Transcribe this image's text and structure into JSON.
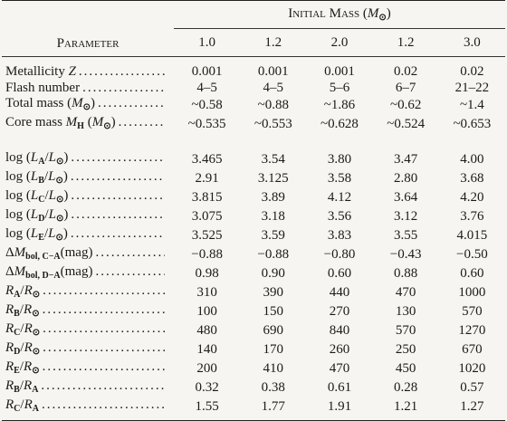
{
  "header": {
    "spanner": [
      "Initial Mass (",
      {
        "text": "M",
        "style": "italic"
      },
      {
        "text": "⊙",
        "style": "sub"
      },
      ")"
    ],
    "parameter": "Parameter",
    "columns": [
      "1.0",
      "1.2",
      "2.0",
      "1.2",
      "3.0"
    ]
  },
  "table": {
    "groups": [
      {
        "rows": [
          {
            "label": [
              "Metallicity ",
              {
                "text": "Z",
                "style": "italic"
              }
            ],
            "values": [
              "0.001",
              "0.001",
              "0.001",
              "0.02",
              "0.02"
            ]
          },
          {
            "label": [
              "Flash number"
            ],
            "values": [
              "4–5",
              "4–5",
              "5–6",
              "6–7",
              "21–22"
            ]
          },
          {
            "label": [
              "Total mass (",
              {
                "text": "M",
                "style": "italic"
              },
              {
                "text": "⊙",
                "style": "sub"
              },
              ")"
            ],
            "values": [
              "~0.58",
              "~0.88",
              "~1.86",
              "~0.62",
              "~1.4"
            ]
          },
          {
            "label": [
              "Core mass ",
              {
                "text": "M",
                "style": "italic"
              },
              {
                "text": "H",
                "style": "sub"
              },
              " (",
              {
                "text": "M",
                "style": "italic"
              },
              {
                "text": "⊙",
                "style": "sub"
              },
              ")"
            ],
            "values": [
              "~0.535",
              "~0.553",
              "~0.628",
              "~0.524",
              "~0.653"
            ]
          }
        ]
      },
      {
        "rows": [
          {
            "label": [
              "log (",
              {
                "text": "L",
                "style": "italic"
              },
              {
                "text": "A",
                "style": "sub"
              },
              "/",
              {
                "text": "L",
                "style": "italic"
              },
              {
                "text": "⊙",
                "style": "sub"
              },
              ")"
            ],
            "values": [
              "3.465",
              "3.54",
              "3.80",
              "3.47",
              "4.00"
            ]
          },
          {
            "label": [
              "log (",
              {
                "text": "L",
                "style": "italic"
              },
              {
                "text": "B",
                "style": "sub"
              },
              "/",
              {
                "text": "L",
                "style": "italic"
              },
              {
                "text": "⊙",
                "style": "sub"
              },
              ")"
            ],
            "values": [
              "2.91",
              "3.125",
              "3.58",
              "2.80",
              "3.68"
            ]
          },
          {
            "label": [
              "log (",
              {
                "text": "L",
                "style": "italic"
              },
              {
                "text": "C",
                "style": "sub"
              },
              "/",
              {
                "text": "L",
                "style": "italic"
              },
              {
                "text": "⊙",
                "style": "sub"
              },
              ")"
            ],
            "values": [
              "3.815",
              "3.89",
              "4.12",
              "3.64",
              "4.20"
            ]
          },
          {
            "label": [
              "log (",
              {
                "text": "L",
                "style": "italic"
              },
              {
                "text": "D",
                "style": "sub"
              },
              "/",
              {
                "text": "L",
                "style": "italic"
              },
              {
                "text": "⊙",
                "style": "sub"
              },
              ")"
            ],
            "values": [
              "3.075",
              "3.18",
              "3.56",
              "3.12",
              "3.76"
            ]
          },
          {
            "label": [
              "log (",
              {
                "text": "L",
                "style": "italic"
              },
              {
                "text": "E",
                "style": "sub"
              },
              "/",
              {
                "text": "L",
                "style": "italic"
              },
              {
                "text": "⊙",
                "style": "sub"
              },
              ")"
            ],
            "values": [
              "3.525",
              "3.59",
              "3.83",
              "3.55",
              "4.015"
            ]
          },
          {
            "label": [
              "Δ",
              {
                "text": "M",
                "style": "italic"
              },
              {
                "text": "bol, C−A",
                "style": "sub"
              },
              "(mag)"
            ],
            "values": [
              "−0.88",
              "−0.88",
              "−0.80",
              "−0.43",
              "−0.50"
            ]
          },
          {
            "label": [
              "Δ",
              {
                "text": "M",
                "style": "italic"
              },
              {
                "text": "bol, D−A",
                "style": "sub"
              },
              "(mag)"
            ],
            "values": [
              "0.98",
              "0.90",
              "0.60",
              "0.88",
              "0.60"
            ]
          },
          {
            "label": [
              {
                "text": "R",
                "style": "italic"
              },
              {
                "text": "A",
                "style": "sub"
              },
              "/",
              {
                "text": "R",
                "style": "italic"
              },
              {
                "text": "⊙",
                "style": "sub"
              }
            ],
            "values": [
              "310",
              "390",
              "440",
              "470",
              "1000"
            ]
          },
          {
            "label": [
              {
                "text": "R",
                "style": "italic"
              },
              {
                "text": "B",
                "style": "sub"
              },
              "/",
              {
                "text": "R",
                "style": "italic"
              },
              {
                "text": "⊙",
                "style": "sub"
              }
            ],
            "values": [
              "100",
              "150",
              "270",
              "130",
              "570"
            ]
          },
          {
            "label": [
              {
                "text": "R",
                "style": "italic"
              },
              {
                "text": "C",
                "style": "sub"
              },
              "/",
              {
                "text": "R",
                "style": "italic"
              },
              {
                "text": "⊙",
                "style": "sub"
              }
            ],
            "values": [
              "480",
              "690",
              "840",
              "570",
              "1270"
            ]
          },
          {
            "label": [
              {
                "text": "R",
                "style": "italic"
              },
              {
                "text": "D",
                "style": "sub"
              },
              "/",
              {
                "text": "R",
                "style": "italic"
              },
              {
                "text": "⊙",
                "style": "sub"
              }
            ],
            "values": [
              "140",
              "170",
              "260",
              "250",
              "670"
            ]
          },
          {
            "label": [
              {
                "text": "R",
                "style": "italic"
              },
              {
                "text": "E",
                "style": "sub"
              },
              "/",
              {
                "text": "R",
                "style": "italic"
              },
              {
                "text": "⊙",
                "style": "sub"
              }
            ],
            "values": [
              "200",
              "410",
              "470",
              "450",
              "1020"
            ]
          },
          {
            "label": [
              {
                "text": "R",
                "style": "italic"
              },
              {
                "text": "B",
                "style": "sub"
              },
              "/",
              {
                "text": "R",
                "style": "italic"
              },
              {
                "text": "A",
                "style": "sub"
              }
            ],
            "values": [
              "0.32",
              "0.38",
              "0.61",
              "0.28",
              "0.57"
            ]
          },
          {
            "label": [
              {
                "text": "R",
                "style": "italic"
              },
              {
                "text": "C",
                "style": "sub"
              },
              "/",
              {
                "text": "R",
                "style": "italic"
              },
              {
                "text": "A",
                "style": "sub"
              }
            ],
            "values": [
              "1.55",
              "1.77",
              "1.91",
              "1.21",
              "1.27"
            ]
          }
        ]
      }
    ]
  }
}
